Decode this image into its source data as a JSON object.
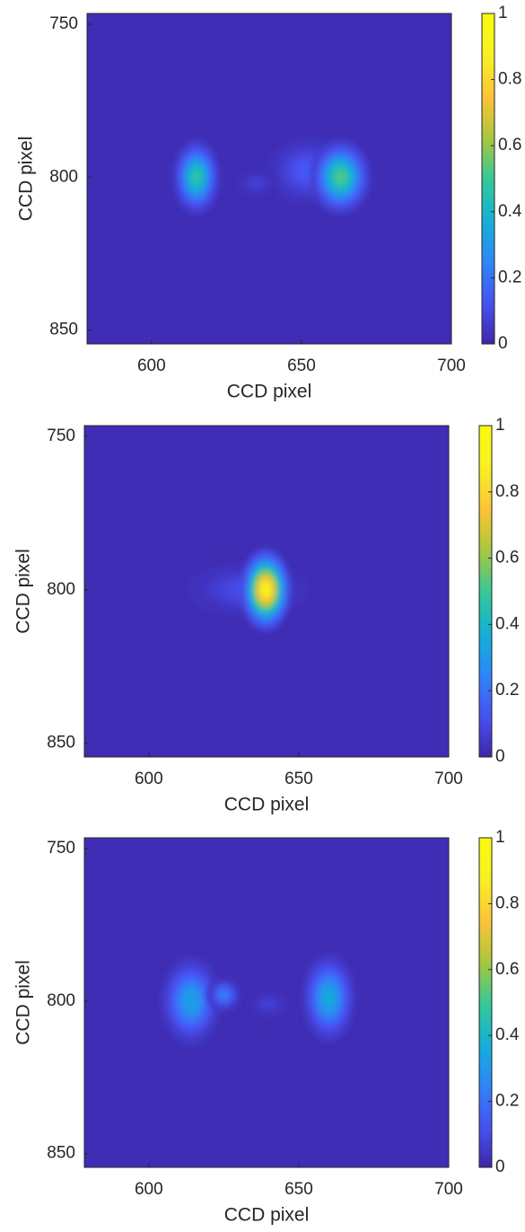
{
  "chart_data": [
    {
      "type": "heatmap",
      "xlabel": "CCD pixel",
      "ylabel": "CCD pixel",
      "xlim": [
        578.5,
        700
      ],
      "ylim": [
        746.5,
        854.5
      ],
      "y_reversed": true,
      "xticks": [
        600,
        650,
        700
      ],
      "yticks": [
        750,
        800,
        850
      ],
      "colormap": "parula",
      "clim": [
        0,
        1
      ],
      "cticks": [
        0,
        0.2,
        0.4,
        0.6,
        0.8,
        1
      ],
      "background": 0.02,
      "spots": {
        "x": [
          652,
          635,
          615,
          663
        ],
        "y": [
          798,
          802,
          800,
          800
        ],
        "values": [
          0.15,
          0.08,
          0.5,
          0.55
        ],
        "x_spread": [
          6,
          3,
          3.5,
          4.5
        ],
        "y_spread": [
          5,
          2,
          5.5,
          5.5
        ]
      }
    },
    {
      "type": "heatmap",
      "xlabel": "CCD pixel",
      "ylabel": "CCD pixel",
      "xlim": [
        578.5,
        700
      ],
      "ylim": [
        746.5,
        854.5
      ],
      "y_reversed": true,
      "xticks": [
        600,
        650,
        700
      ],
      "yticks": [
        750,
        800,
        850
      ],
      "colormap": "parula",
      "clim": [
        0,
        1
      ],
      "cticks": [
        0,
        0.2,
        0.4,
        0.6,
        0.8,
        1
      ],
      "background": 0.02,
      "spots": {
        "x": [
          633,
          639
        ],
        "y": [
          800,
          800
        ],
        "values": [
          0.12,
          0.95
        ],
        "x_spread": [
          9,
          3.8
        ],
        "y_spread": [
          4,
          6
        ]
      }
    },
    {
      "type": "heatmap",
      "xlabel": "CCD pixel",
      "ylabel": "CCD pixel",
      "xlim": [
        578.5,
        700
      ],
      "ylim": [
        746.5,
        854.5
      ],
      "y_reversed": true,
      "xticks": [
        600,
        650,
        700
      ],
      "yticks": [
        750,
        800,
        850
      ],
      "colormap": "parula",
      "clim": [
        0,
        1
      ],
      "cticks": [
        0,
        0.2,
        0.4,
        0.6,
        0.8,
        1
      ],
      "background": 0.02,
      "spots": {
        "x": [
          640,
          614,
          625,
          660
        ],
        "y": [
          801,
          800,
          798,
          799
        ],
        "values": [
          0.08,
          0.35,
          0.25,
          0.38
        ],
        "x_spread": [
          3,
          4.5,
          2.5,
          4
        ],
        "y_spread": [
          2,
          6.5,
          2.5,
          6.5
        ]
      }
    }
  ]
}
